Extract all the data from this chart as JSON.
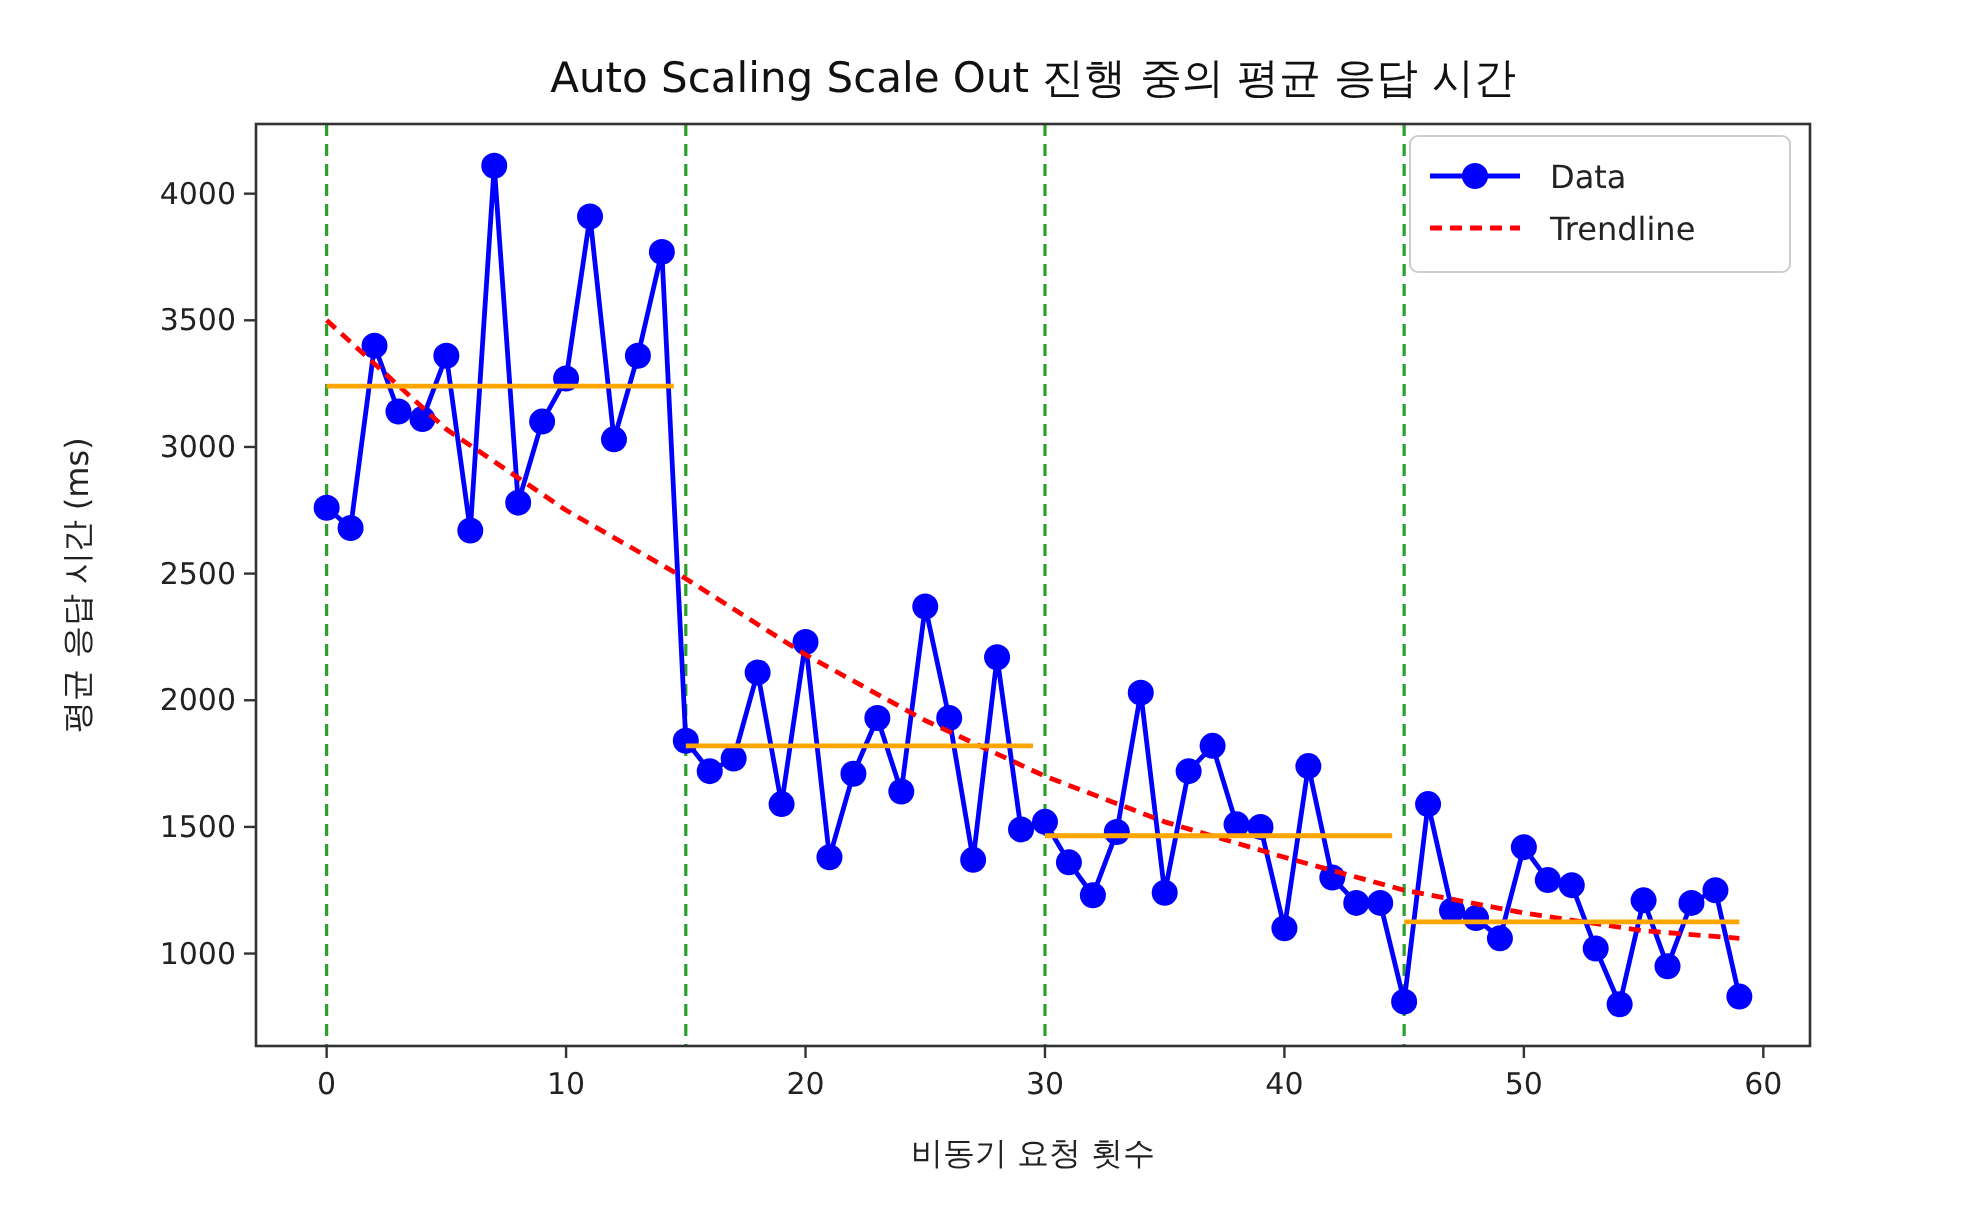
{
  "chart_data": {
    "type": "line",
    "title": "Auto Scaling Scale Out 진행 중의 평균 응답 시간",
    "xlabel": "비동기 요청 횟수",
    "ylabel": "평균 응답 시간 (ms)",
    "x": [
      0,
      1,
      2,
      3,
      4,
      5,
      6,
      7,
      8,
      9,
      10,
      11,
      12,
      13,
      14,
      15,
      16,
      17,
      18,
      19,
      20,
      21,
      22,
      23,
      24,
      25,
      26,
      27,
      28,
      29,
      30,
      31,
      32,
      33,
      34,
      35,
      36,
      37,
      38,
      39,
      40,
      41,
      42,
      43,
      44,
      45,
      46,
      47,
      48,
      49,
      50,
      51,
      52,
      53,
      54,
      55,
      56,
      57,
      58,
      59
    ],
    "series": [
      {
        "name": "Data",
        "color": "#0000ff",
        "marker": "circle",
        "line_style": "solid",
        "values": [
          2760,
          2680,
          3400,
          3140,
          3110,
          3360,
          2670,
          4110,
          2780,
          3100,
          3270,
          3910,
          3030,
          3360,
          3770,
          1840,
          1720,
          1770,
          2110,
          1590,
          2230,
          1380,
          1710,
          1930,
          1640,
          2370,
          1930,
          1370,
          2170,
          1490,
          1520,
          1360,
          1230,
          1480,
          2030,
          1240,
          1720,
          1820,
          1510,
          1500,
          1100,
          1740,
          1300,
          1200,
          1200,
          810,
          1590,
          1170,
          1140,
          1060,
          1420,
          1290,
          1270,
          1020,
          800,
          1210,
          950,
          1200,
          1250,
          830
        ]
      },
      {
        "name": "Trendline",
        "color": "#ff0000",
        "marker": "none",
        "line_style": "dashed",
        "x": [
          0,
          5,
          10,
          15,
          20,
          25,
          30,
          35,
          40,
          45,
          50,
          55,
          59
        ],
        "values": [
          3500,
          3070,
          2750,
          2480,
          2180,
          1920,
          1700,
          1520,
          1380,
          1250,
          1160,
          1090,
          1060
        ]
      },
      {
        "color": "#ffa500",
        "marker": "none",
        "line_style": "solid",
        "x": [
          0,
          14.5
        ],
        "values": [
          3240,
          3240
        ]
      },
      {
        "color": "#ffa500",
        "marker": "none",
        "line_style": "solid",
        "x": [
          15,
          29.5
        ],
        "values": [
          1820,
          1820
        ]
      },
      {
        "color": "#ffa500",
        "marker": "none",
        "line_style": "solid",
        "x": [
          30,
          44.5
        ],
        "values": [
          1465,
          1465
        ]
      },
      {
        "color": "#ffa500",
        "marker": "none",
        "line_style": "solid",
        "x": [
          45,
          59
        ],
        "values": [
          1125,
          1125
        ]
      }
    ],
    "ref_lines": [
      {
        "axis": "x",
        "value": 0,
        "color": "#2ca02c",
        "line_style": "dashed"
      },
      {
        "axis": "x",
        "value": 15,
        "color": "#2ca02c",
        "line_style": "dashed"
      },
      {
        "axis": "x",
        "value": 30,
        "color": "#2ca02c",
        "line_style": "dashed"
      },
      {
        "axis": "x",
        "value": 45,
        "color": "#2ca02c",
        "line_style": "dashed"
      }
    ],
    "xlim": [
      -2.95,
      61.95
    ],
    "ylim": [
      635,
      4275
    ],
    "xticks": [
      0,
      10,
      20,
      30,
      40,
      50,
      60
    ],
    "yticks": [
      1000,
      1500,
      2000,
      2500,
      3000,
      3500,
      4000
    ],
    "legend": "top right"
  }
}
